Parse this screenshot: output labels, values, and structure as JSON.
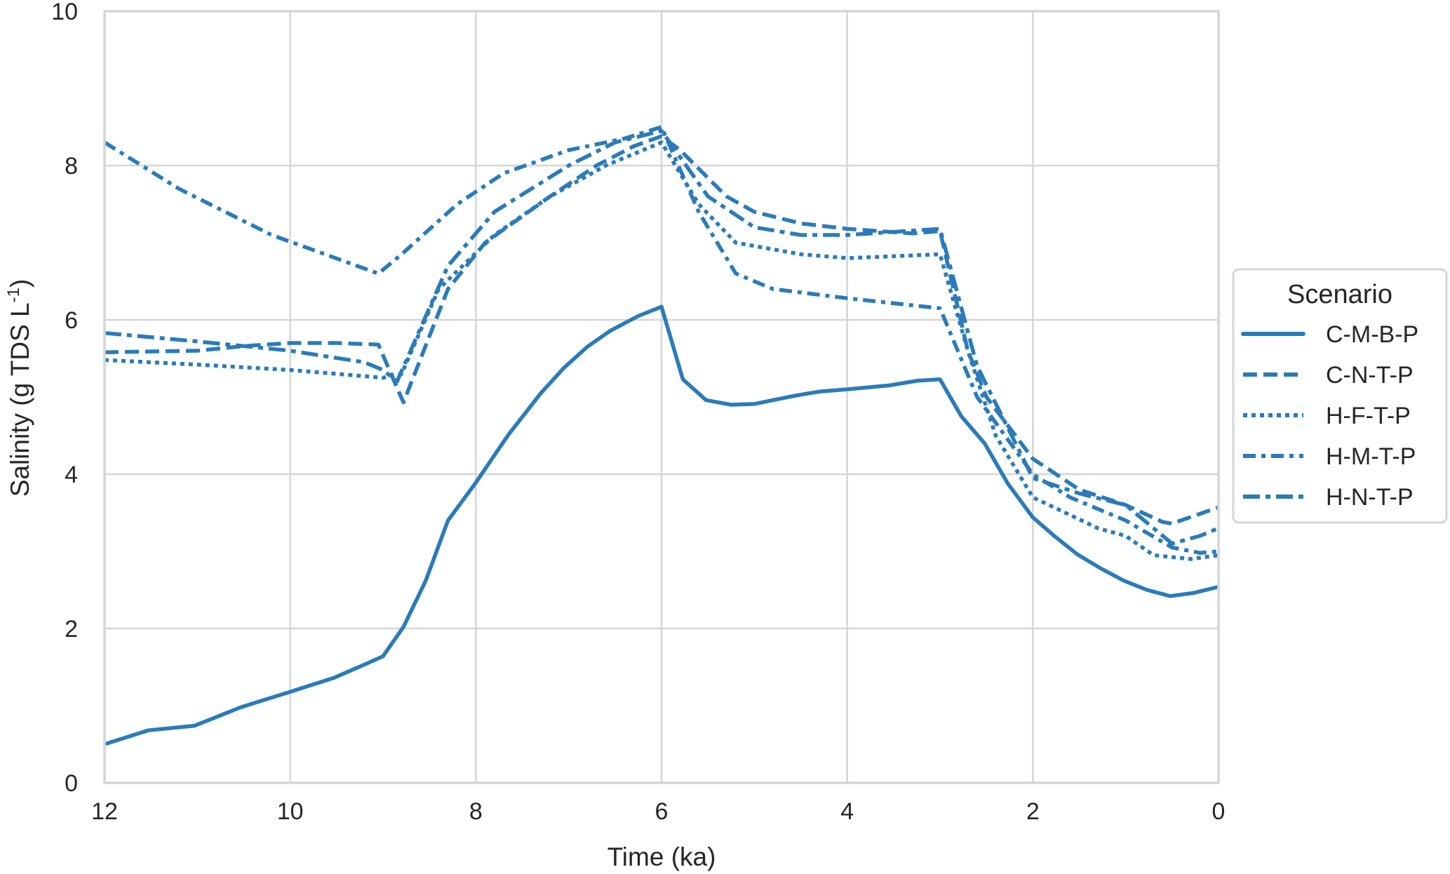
{
  "chart_data": {
    "type": "line",
    "xlabel": "Time (ka)",
    "ylabel_main": "Salinity (g TDS L",
    "ylabel_sup": "-1",
    "ylabel_tail": ")",
    "xlim": [
      12,
      0
    ],
    "ylim": [
      0,
      10
    ],
    "x_reversed": true,
    "xticks": [
      12,
      10,
      8,
      6,
      4,
      2,
      0
    ],
    "yticks": [
      0,
      2,
      4,
      6,
      8,
      10
    ],
    "grid": true,
    "legend": {
      "title": "Scenario",
      "placement": "right-outside"
    },
    "color": "#2b7bba",
    "series": [
      {
        "name": "C-M-B-P",
        "style": "solid",
        "x": [
          12,
          11.53,
          11.03,
          10.78,
          10.53,
          10,
          9.53,
          9.3,
          9.0,
          8.78,
          8.54,
          8.3,
          8.0,
          7.65,
          7.3,
          7.05,
          6.8,
          6.55,
          6.25,
          6.0,
          5.77,
          5.52,
          5.25,
          5.0,
          4.8,
          4.55,
          4.3,
          4.0,
          3.55,
          3.25,
          3.0,
          2.77,
          2.52,
          2.27,
          2.0,
          1.77,
          1.52,
          1.27,
          1.02,
          0.77,
          0.52,
          0.27,
          0
        ],
        "y": [
          0.5,
          0.68,
          0.74,
          0.86,
          0.98,
          1.18,
          1.36,
          1.48,
          1.64,
          2.02,
          2.62,
          3.4,
          3.89,
          4.51,
          5.05,
          5.38,
          5.65,
          5.86,
          6.05,
          6.17,
          5.23,
          4.96,
          4.9,
          4.91,
          4.96,
          5.02,
          5.07,
          5.1,
          5.15,
          5.21,
          5.23,
          4.75,
          4.4,
          3.88,
          3.44,
          3.2,
          2.96,
          2.78,
          2.62,
          2.5,
          2.42,
          2.46,
          2.54
        ]
      },
      {
        "name": "C-N-T-P",
        "style": "dashed",
        "x": [
          12,
          11,
          10.5,
          10,
          9.5,
          9.05,
          8.78,
          8.3,
          7.9,
          7.2,
          6.7,
          6.3,
          6.0,
          5.8,
          5.3,
          5.0,
          4.5,
          4.0,
          3.3,
          3.0,
          2.7,
          2.5,
          2.0,
          1.5,
          1.0,
          0.6,
          0.5,
          0
        ],
        "y": [
          5.58,
          5.6,
          5.66,
          5.7,
          5.7,
          5.68,
          4.93,
          6.4,
          7.0,
          7.6,
          8.0,
          8.25,
          8.38,
          8.2,
          7.6,
          7.4,
          7.25,
          7.18,
          7.12,
          7.15,
          5.6,
          5.0,
          4.2,
          3.8,
          3.6,
          3.38,
          3.36,
          3.57
        ]
      },
      {
        "name": "H-F-T-P",
        "style": "dotted",
        "x": [
          12,
          11,
          10,
          9,
          8.8,
          8.4,
          7.8,
          7.2,
          6.6,
          6.0,
          5.6,
          5.2,
          4.5,
          4.0,
          3.0,
          2.7,
          2.4,
          2.0,
          1.3,
          1.0,
          0.7,
          0.3,
          0
        ],
        "y": [
          5.48,
          5.42,
          5.35,
          5.25,
          5.3,
          6.4,
          7.1,
          7.6,
          8.0,
          8.3,
          7.5,
          7.0,
          6.85,
          6.8,
          6.85,
          5.6,
          4.5,
          3.7,
          3.3,
          3.2,
          2.95,
          2.9,
          2.95
        ]
      },
      {
        "name": "H-M-T-P",
        "style": "dash-dot-short",
        "x": [
          12,
          11.2,
          10.2,
          9.05,
          8.8,
          8.2,
          7.7,
          7.0,
          6.4,
          6.0,
          5.6,
          5.2,
          4.8,
          4.0,
          3.0,
          2.6,
          2.0,
          1.6,
          1.0,
          0.5,
          0.2,
          0
        ],
        "y": [
          8.3,
          7.7,
          7.1,
          6.6,
          6.85,
          7.5,
          7.9,
          8.2,
          8.35,
          8.5,
          7.4,
          6.6,
          6.4,
          6.28,
          6.15,
          5.0,
          4.0,
          3.7,
          3.4,
          3.05,
          2.98,
          3.0
        ]
      },
      {
        "name": "H-N-T-P",
        "style": "dash-dot",
        "x": [
          12,
          11,
          10,
          9.2,
          9.0,
          8.85,
          8.3,
          7.8,
          7.0,
          6.5,
          6.0,
          5.5,
          5.0,
          4.5,
          4.0,
          3.0,
          2.6,
          2.0,
          1.5,
          1.0,
          0.5,
          0.2,
          0
        ],
        "y": [
          5.83,
          5.72,
          5.6,
          5.45,
          5.35,
          5.2,
          6.7,
          7.4,
          8.0,
          8.3,
          8.45,
          7.6,
          7.2,
          7.1,
          7.1,
          7.18,
          5.4,
          3.95,
          3.75,
          3.6,
          3.1,
          3.2,
          3.3
        ]
      }
    ]
  }
}
